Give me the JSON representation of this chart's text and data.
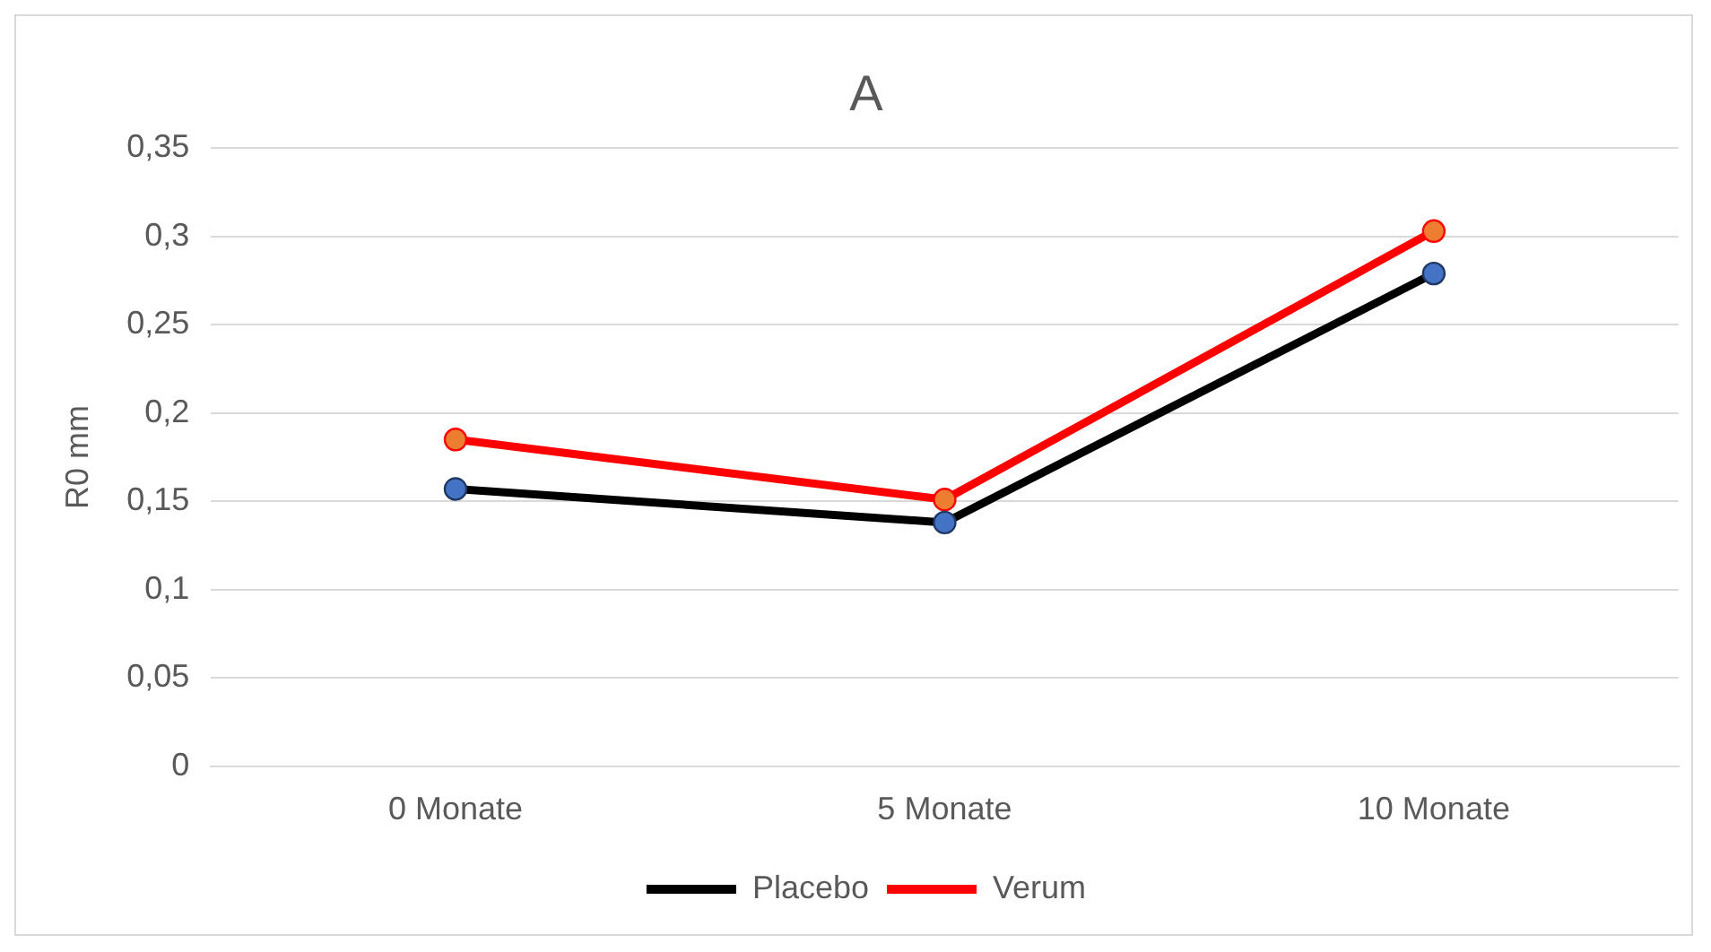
{
  "chart_data": {
    "type": "line",
    "title": "A",
    "ylabel": "R0 mm",
    "categories": [
      "0 Monate",
      "5 Monate",
      "10 Monate"
    ],
    "series": [
      {
        "name": "Placebo",
        "color": "#000000",
        "values": [
          0.157,
          0.138,
          0.279
        ]
      },
      {
        "name": "Verum",
        "color": "#ff0000",
        "values": [
          0.185,
          0.151,
          0.303
        ]
      }
    ],
    "ylim": [
      0,
      0.35
    ],
    "yticks": [
      {
        "value": 0,
        "label": "0"
      },
      {
        "value": 0.05,
        "label": "0,05"
      },
      {
        "value": 0.1,
        "label": "0,1"
      },
      {
        "value": 0.15,
        "label": "0,15"
      },
      {
        "value": 0.2,
        "label": "0,2"
      },
      {
        "value": 0.25,
        "label": "0,25"
      },
      {
        "value": 0.3,
        "label": "0,3"
      },
      {
        "value": 0.35,
        "label": "0,35"
      }
    ],
    "grid": "y",
    "legend": "bottom",
    "marker": "circle",
    "line_style": "solid"
  }
}
